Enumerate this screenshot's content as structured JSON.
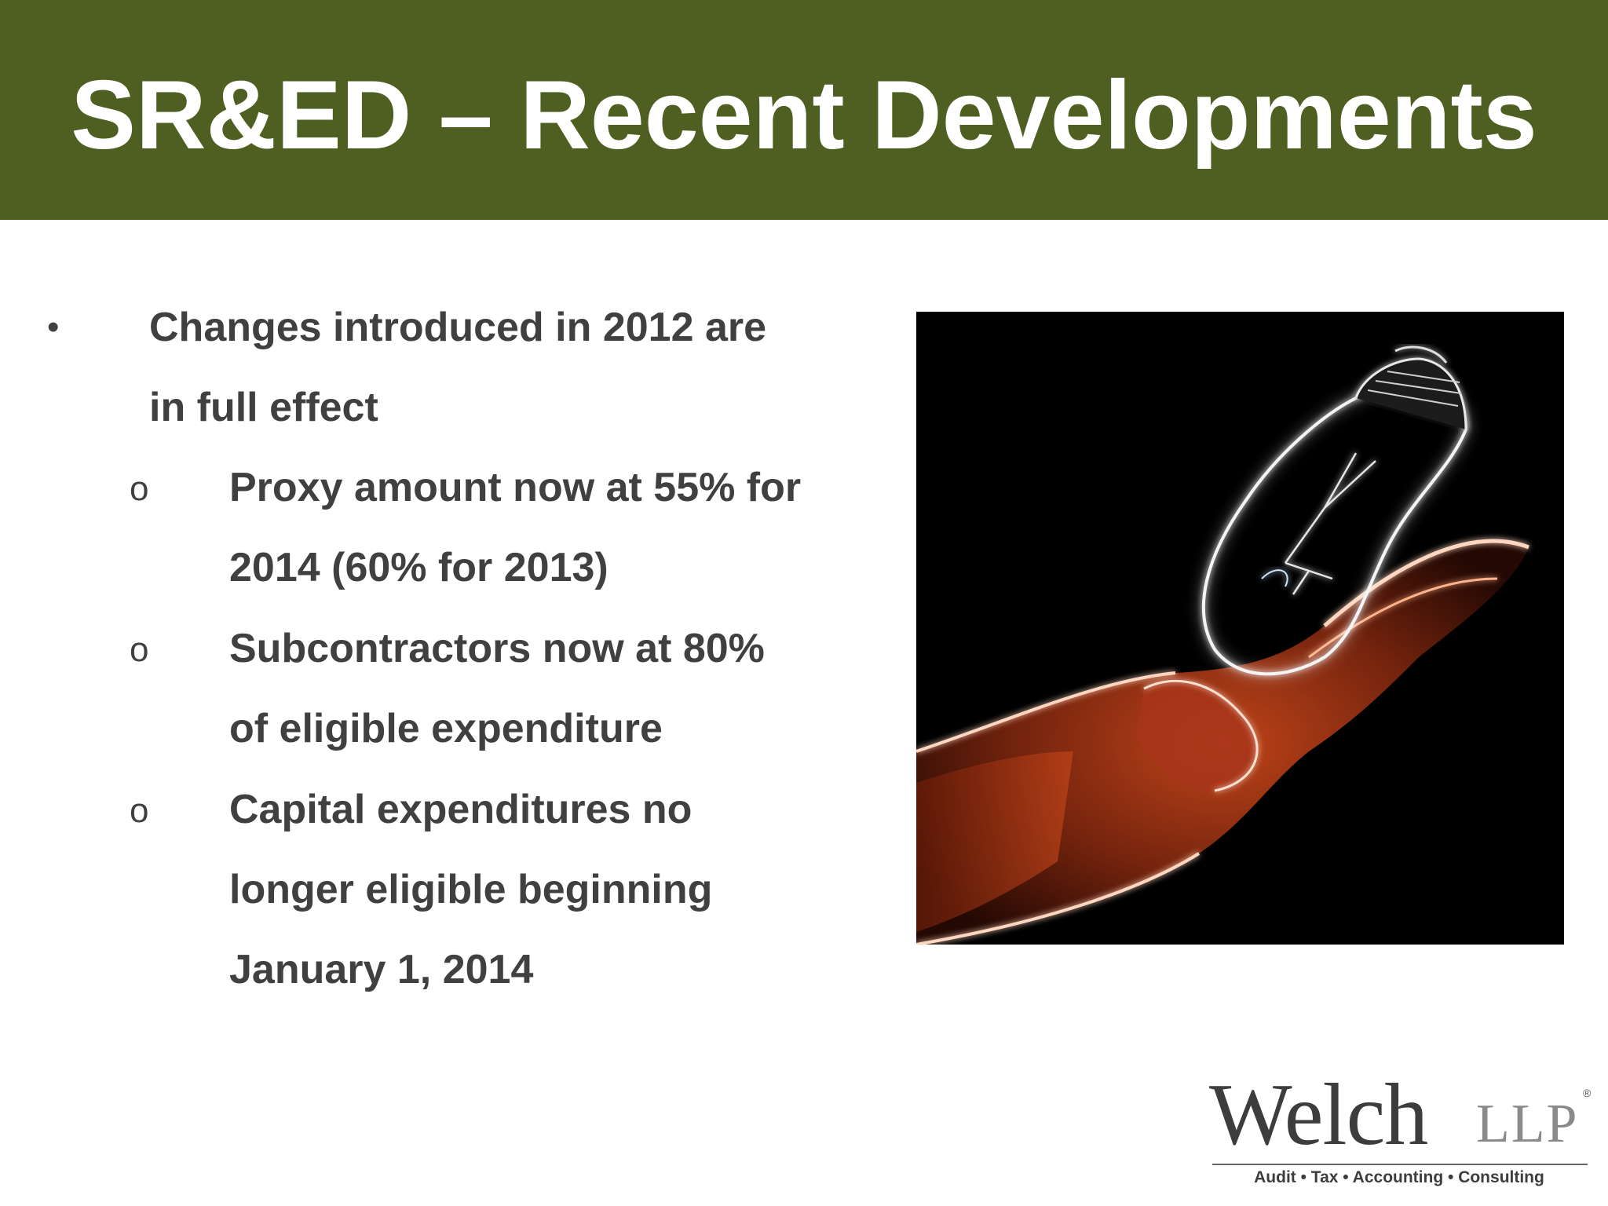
{
  "slide": {
    "title": "SR&ED – Recent Developments",
    "bullets": [
      {
        "marker": "•",
        "text": "Changes introduced in 2012 are\nin full effect"
      },
      {
        "marker": "o",
        "text": "Proxy amount now at 55% for\n2014 (60% for 2013)"
      },
      {
        "marker": "o",
        "text": "Subcontractors now at 80%\nof eligible expenditure"
      },
      {
        "marker": "o",
        "text": "Capital expenditures no\nlonger eligible beginning\nJanuary 1, 2014"
      }
    ],
    "image": {
      "icon": "glowing-lightbulb-in-hand"
    }
  },
  "logo": {
    "name": "Welch",
    "suffix": "LLP",
    "registered": "®",
    "tagline": "Audit • Tax • Accounting • Consulting"
  },
  "colors": {
    "header": "#4e5f21",
    "title_text": "#ffffff",
    "body_text": "#404040"
  }
}
